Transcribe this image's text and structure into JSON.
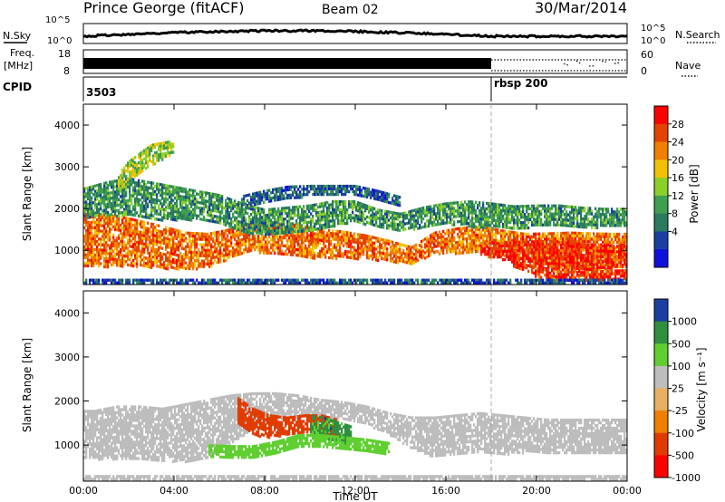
{
  "header": {
    "station": "Prince George (fitACF)",
    "beam": "Beam 02",
    "date": "30/Mar/2014"
  },
  "colors": {
    "background": "#ffffff",
    "axis": "#000000"
  },
  "top_panels": {
    "nsky_label": "N.Sky",
    "nsearch_label": "N.Search",
    "noise_ticks": [
      "10^5",
      "10^0"
    ],
    "freq_label": "Freq.",
    "freq_units": "[MHz]",
    "freq_ticks": [
      "18",
      "8"
    ],
    "nave_label": "Nave",
    "nave_ticks": [
      "60",
      "0"
    ],
    "cpid_label": "CPID",
    "cpid_values": [
      "3503",
      "rbsp 200"
    ],
    "nave_change_time": 18.0
  },
  "chart_data": [
    {
      "type": "heatmap",
      "title": "",
      "xlabel": "",
      "ylabel": "Slant Range [km]",
      "xlim": [
        0,
        24
      ],
      "ylim": [
        180,
        4500
      ],
      "yticks": [
        "4000",
        "3000",
        "2000",
        "1000"
      ],
      "colorbar": {
        "label": "Power [dB]",
        "ticks": [
          "28",
          "24",
          "20",
          "16",
          "12",
          "8",
          "4"
        ]
      },
      "bands": [
        {
          "t": [
            0,
            0.5,
            1.5,
            2.5,
            3.5,
            4.5,
            5.5,
            6.5,
            7.5,
            8.5,
            9.5,
            10.5,
            11.5,
            12.5,
            13.5,
            14.5,
            15.5,
            16.5,
            17.5,
            18.5,
            19.5,
            20.5,
            21.5,
            22.5,
            23.5,
            24
          ],
          "r": [
            1250,
            1250,
            1250,
            1180,
            1100,
            1000,
            1020,
            1180,
            1350,
            1300,
            1250,
            1180,
            1150,
            1100,
            1000,
            900,
            1200,
            1250,
            1300,
            1200,
            1100,
            1050,
            1000,
            980,
            1000,
            1000
          ],
          "w": [
            650,
            650,
            600,
            550,
            500,
            450,
            400,
            350,
            350,
            380,
            380,
            350,
            320,
            280,
            250,
            200,
            250,
            300,
            300,
            300,
            320,
            380,
            450,
            450,
            420,
            420
          ],
          "db": 24
        },
        {
          "t": [
            17.5,
            18.5,
            19.5,
            20.5,
            21.5,
            22.5,
            23.5,
            24
          ],
          "r": [
            1050,
            1000,
            950,
            900,
            850,
            850,
            880,
            880
          ],
          "w": [
            150,
            200,
            280,
            350,
            350,
            300,
            250,
            250
          ],
          "db": 28
        },
        {
          "t": [
            19.0,
            20.0,
            21.0,
            22.0,
            23.0,
            24
          ],
          "r": [
            700,
            500,
            420,
            400,
            430,
            450
          ],
          "w": [
            80,
            100,
            100,
            100,
            100,
            100
          ],
          "db": 27
        },
        {
          "t": [
            0,
            1,
            2,
            3,
            4,
            5,
            6,
            7,
            8,
            9,
            10,
            11,
            12,
            13,
            14,
            15,
            16,
            17,
            18,
            19,
            20,
            21,
            22,
            23,
            24
          ],
          "r": [
            2150,
            2250,
            2300,
            2200,
            2150,
            2100,
            2000,
            1800,
            1700,
            1750,
            1800,
            1900,
            1950,
            1800,
            1700,
            1800,
            1900,
            1900,
            1850,
            1800,
            1850,
            1850,
            1800,
            1800,
            1800
          ],
          "w": [
            350,
            400,
            450,
            450,
            400,
            350,
            350,
            350,
            300,
            300,
            300,
            300,
            250,
            200,
            200,
            250,
            250,
            300,
            300,
            280,
            250,
            250,
            250,
            220,
            220
          ],
          "db": 11
        },
        {
          "t": [
            7.0,
            8.0,
            9.0,
            10.0,
            11.0,
            12.0,
            13.0,
            14.0
          ],
          "r": [
            2200,
            2300,
            2400,
            2450,
            2450,
            2450,
            2350,
            2200
          ],
          "w": [
            120,
            150,
            150,
            120,
            120,
            120,
            100,
            100
          ],
          "db": 7
        },
        {
          "t": [
            1.5,
            2.0,
            2.5,
            3.0,
            3.5,
            4.0
          ],
          "r": [
            2600,
            2900,
            3100,
            3300,
            3400,
            3500
          ],
          "w": [
            200,
            250,
            250,
            250,
            200,
            150
          ],
          "db": 16
        },
        {
          "t": [
            0,
            3,
            6,
            9,
            12,
            14,
            15,
            18,
            21,
            24
          ],
          "r": [
            260,
            260,
            260,
            260,
            260,
            260,
            260,
            260,
            260,
            260
          ],
          "w": [
            60,
            60,
            60,
            60,
            60,
            60,
            60,
            60,
            60,
            60
          ],
          "db": 6
        }
      ]
    },
    {
      "type": "heatmap",
      "title": "",
      "xlabel": "Time UT",
      "ylabel": "Slant Range [km]",
      "xlim": [
        0,
        24
      ],
      "ylim": [
        180,
        4500
      ],
      "xticks": [
        "00:00",
        "04:00",
        "08:00",
        "12:00",
        "16:00",
        "20:00",
        "00:00"
      ],
      "yticks": [
        "4000",
        "3000",
        "2000",
        "1000"
      ],
      "colorbar": {
        "label": "Velocity [m s⁻¹]",
        "ticks": [
          "1000",
          "500",
          "100",
          "25",
          "-25",
          "-100",
          "-500",
          "-1000"
        ]
      },
      "bands": [
        {
          "t": [
            0,
            0.5,
            1.5,
            2.5,
            3.5,
            4.5,
            5.5,
            6.5,
            7.5,
            8.5,
            9.5,
            10.5,
            11.5,
            12.5,
            13.5,
            14.5,
            15.5,
            16.5,
            17.5,
            18.5,
            19.5,
            20.5,
            21.5,
            22.5,
            23.5,
            24
          ],
          "r": [
            1250,
            1250,
            1300,
            1300,
            1250,
            1300,
            1400,
            1600,
            1800,
            1900,
            1900,
            1850,
            1800,
            1700,
            1500,
            1300,
            1200,
            1250,
            1300,
            1250,
            1250,
            1200,
            1200,
            1200,
            1200,
            1200
          ],
          "w": [
            550,
            550,
            600,
            600,
            600,
            650,
            650,
            550,
            400,
            300,
            250,
            200,
            200,
            200,
            250,
            350,
            450,
            450,
            450,
            450,
            400,
            400,
            400,
            400,
            400,
            400
          ],
          "v": 0
        },
        {
          "t": [
            6.8,
            7.5,
            8.2,
            9.0,
            9.8,
            10.5,
            11.2
          ],
          "r": [
            1800,
            1550,
            1450,
            1450,
            1500,
            1500,
            1400
          ],
          "w": [
            300,
            300,
            250,
            200,
            200,
            200,
            200
          ],
          "v": -300
        },
        {
          "t": [
            10.0,
            10.6,
            11.2,
            11.8
          ],
          "r": [
            1500,
            1400,
            1300,
            1250
          ],
          "w": [
            200,
            250,
            250,
            200
          ],
          "v": 700
        },
        {
          "t": [
            5.5,
            6.5,
            7.5,
            8.5,
            9.5,
            10.5,
            11.5,
            12.5,
            13.5
          ],
          "r": [
            900,
            850,
            850,
            950,
            1100,
            1100,
            1050,
            1000,
            950
          ],
          "w": [
            120,
            150,
            150,
            150,
            150,
            150,
            150,
            150,
            120
          ],
          "v": 80
        },
        {
          "t": [
            0,
            3,
            6,
            9,
            12,
            14,
            15,
            18,
            21,
            24
          ],
          "r": [
            260,
            260,
            260,
            260,
            260,
            260,
            260,
            260,
            260,
            260
          ],
          "w": [
            60,
            60,
            60,
            60,
            60,
            60,
            60,
            60,
            60,
            60
          ],
          "v": 0
        }
      ]
    }
  ]
}
